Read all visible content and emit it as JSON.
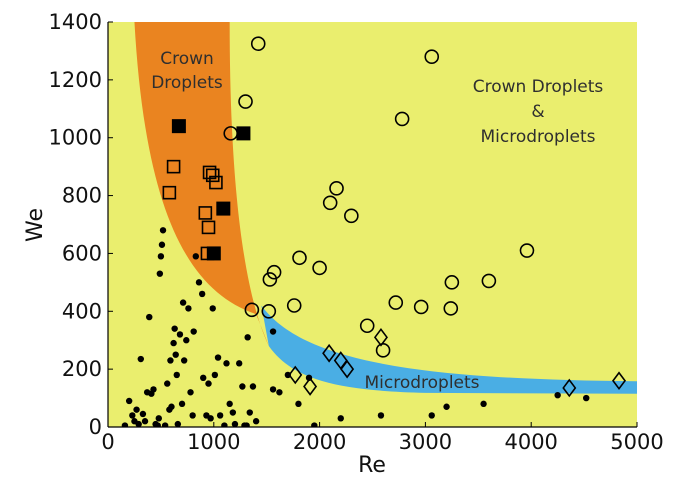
{
  "chart_data": {
    "type": "scatter",
    "xlabel": "Re",
    "ylabel": "We",
    "xlim": [
      0,
      5000
    ],
    "ylim": [
      0,
      1400
    ],
    "xticks": [
      0,
      1000,
      2000,
      3000,
      4000,
      5000
    ],
    "yticks": [
      0,
      200,
      400,
      600,
      800,
      1000,
      1200,
      1400
    ],
    "grid": false,
    "regions": [
      {
        "label_lines": [
          "Crown Droplets & Microdroplets"
        ],
        "color": "#eaee6e",
        "label_lines_display": [
          "Crown Droplets",
          "&",
          "Microdroplets"
        ]
      },
      {
        "label_lines": [
          "Crown",
          "Droplets"
        ],
        "color": "#ea8420"
      },
      {
        "label_lines": [
          "Microdroplets"
        ],
        "color": "#4aaee4"
      }
    ],
    "series": [
      {
        "marker": "dot",
        "points": [
          [
            160,
            5
          ],
          [
            200,
            90
          ],
          [
            230,
            40
          ],
          [
            250,
            20
          ],
          [
            270,
            60
          ],
          [
            290,
            10
          ],
          [
            310,
            235
          ],
          [
            330,
            45
          ],
          [
            350,
            20
          ],
          [
            370,
            120
          ],
          [
            390,
            380
          ],
          [
            410,
            115
          ],
          [
            430,
            130
          ],
          [
            450,
            10
          ],
          [
            470,
            5
          ],
          [
            480,
            30
          ],
          [
            490,
            530
          ],
          [
            500,
            590
          ],
          [
            510,
            630
          ],
          [
            520,
            680
          ],
          [
            540,
            5
          ],
          [
            560,
            150
          ],
          [
            580,
            60
          ],
          [
            590,
            230
          ],
          [
            600,
            70
          ],
          [
            620,
            290
          ],
          [
            630,
            340
          ],
          [
            640,
            250
          ],
          [
            650,
            180
          ],
          [
            660,
            10
          ],
          [
            680,
            320
          ],
          [
            700,
            80
          ],
          [
            710,
            430
          ],
          [
            720,
            230
          ],
          [
            740,
            300
          ],
          [
            760,
            410
          ],
          [
            780,
            120
          ],
          [
            800,
            40
          ],
          [
            810,
            330
          ],
          [
            830,
            590
          ],
          [
            860,
            500
          ],
          [
            890,
            460
          ],
          [
            900,
            170
          ],
          [
            930,
            40
          ],
          [
            950,
            150
          ],
          [
            970,
            30
          ],
          [
            990,
            410
          ],
          [
            1010,
            180
          ],
          [
            1040,
            240
          ],
          [
            1060,
            40
          ],
          [
            1100,
            5
          ],
          [
            1120,
            220
          ],
          [
            1150,
            80
          ],
          [
            1180,
            50
          ],
          [
            1200,
            10
          ],
          [
            1240,
            220
          ],
          [
            1270,
            140
          ],
          [
            1290,
            5
          ],
          [
            1310,
            5
          ],
          [
            1320,
            310
          ],
          [
            1340,
            50
          ],
          [
            1370,
            140
          ],
          [
            1400,
            20
          ],
          [
            1560,
            330
          ],
          [
            1560,
            130
          ],
          [
            1620,
            120
          ],
          [
            1700,
            180
          ],
          [
            1800,
            80
          ],
          [
            1900,
            170
          ],
          [
            1950,
            5
          ],
          [
            2200,
            30
          ],
          [
            2580,
            40
          ],
          [
            3060,
            40
          ],
          [
            3200,
            70
          ],
          [
            3550,
            80
          ],
          [
            4250,
            110
          ],
          [
            4520,
            100
          ]
        ]
      },
      {
        "marker": "circle",
        "points": [
          [
            1420,
            1325
          ],
          [
            1300,
            1125
          ],
          [
            1160,
            1015
          ],
          [
            1360,
            405
          ],
          [
            1520,
            400
          ],
          [
            1530,
            510
          ],
          [
            1570,
            535
          ],
          [
            1760,
            420
          ],
          [
            1810,
            585
          ],
          [
            2000,
            550
          ],
          [
            2100,
            775
          ],
          [
            2160,
            825
          ],
          [
            2300,
            730
          ],
          [
            2450,
            350
          ],
          [
            2600,
            265
          ],
          [
            2720,
            430
          ],
          [
            2780,
            1065
          ],
          [
            2960,
            415
          ],
          [
            3060,
            1280
          ],
          [
            3240,
            410
          ],
          [
            3250,
            500
          ],
          [
            3600,
            505
          ],
          [
            3960,
            610
          ]
        ]
      },
      {
        "marker": "open-square",
        "points": [
          [
            580,
            810
          ],
          [
            620,
            900
          ],
          [
            920,
            740
          ],
          [
            950,
            690
          ],
          [
            960,
            880
          ],
          [
            990,
            870
          ],
          [
            1020,
            845
          ],
          [
            940,
            600
          ]
        ]
      },
      {
        "marker": "filled-square",
        "points": [
          [
            670,
            1040
          ],
          [
            1280,
            1015
          ],
          [
            1090,
            755
          ],
          [
            1000,
            600
          ]
        ]
      },
      {
        "marker": "diamond",
        "points": [
          [
            1770,
            180
          ],
          [
            1910,
            140
          ],
          [
            2090,
            255
          ],
          [
            2200,
            230
          ],
          [
            2260,
            200
          ],
          [
            2580,
            310
          ],
          [
            4360,
            135
          ],
          [
            4830,
            160
          ]
        ]
      }
    ]
  }
}
